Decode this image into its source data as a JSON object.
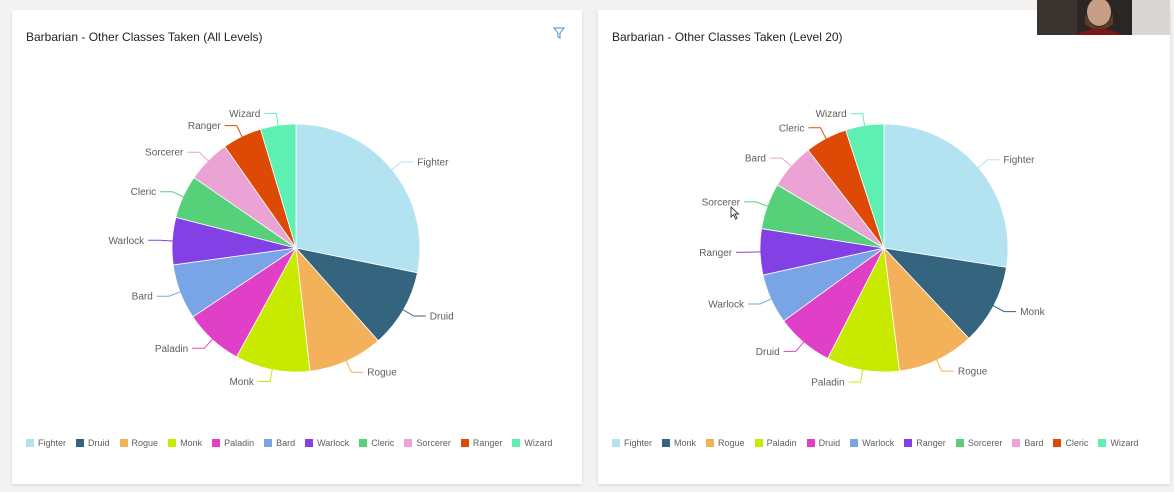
{
  "chart_data": [
    {
      "type": "pie",
      "title": "Barbarian - Other Classes Taken (All Levels)",
      "categories": [
        "Fighter",
        "Druid",
        "Rogue",
        "Monk",
        "Paladin",
        "Bard",
        "Warlock",
        "Cleric",
        "Sorcerer",
        "Ranger",
        "Wizard"
      ],
      "values": [
        27.5,
        10.0,
        9.5,
        9.5,
        7.5,
        7.0,
        6.0,
        5.5,
        5.5,
        5.0,
        4.5
      ],
      "colors": [
        "#b3e2f1",
        "#35647f",
        "#f3b15a",
        "#c8ea00",
        "#e040c8",
        "#79a4e6",
        "#8340e5",
        "#57d179",
        "#eba3d6",
        "#de4a05",
        "#5ef0b2"
      ],
      "legend": "bottom",
      "has_filter_icon": true
    },
    {
      "type": "pie",
      "title": "Barbarian - Other Classes Taken (Level 20)",
      "categories": [
        "Fighter",
        "Monk",
        "Rogue",
        "Paladin",
        "Druid",
        "Warlock",
        "Ranger",
        "Sorcerer",
        "Bard",
        "Cleric",
        "Wizard"
      ],
      "values": [
        27.5,
        10.5,
        10.0,
        9.5,
        7.5,
        6.5,
        6.0,
        6.0,
        6.0,
        5.5,
        5.0
      ],
      "colors": [
        "#b3e2f1",
        "#35647f",
        "#f3b15a",
        "#c8ea00",
        "#e040c8",
        "#79a4e6",
        "#8340e5",
        "#57d179",
        "#eba3d6",
        "#de4a05",
        "#5ef0b2"
      ],
      "legend": "bottom",
      "has_filter_icon": false
    }
  ],
  "icons": {
    "filter": "filter-icon",
    "cursor": "mouse-cursor-icon"
  }
}
